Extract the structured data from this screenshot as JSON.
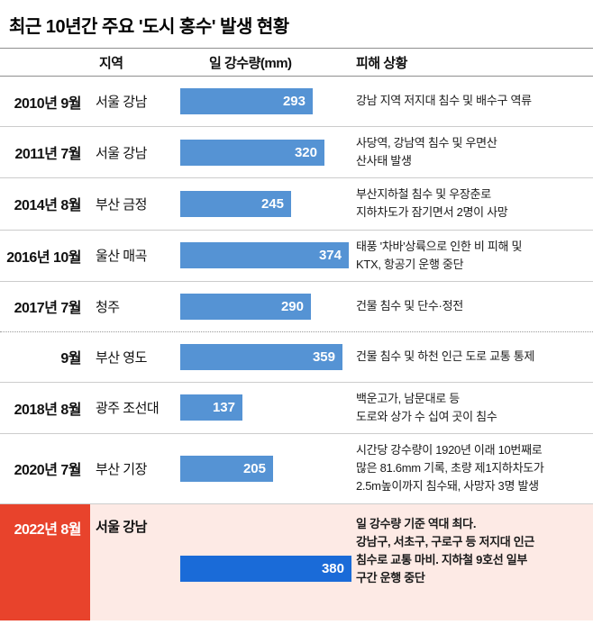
{
  "title": "최근 10년간 주요 '도시 홍수' 발생 현황",
  "header": {
    "region": "지역",
    "rainfall": "일 강수량(mm)",
    "damage": "피해 상황"
  },
  "colors": {
    "bar": "#5593d4",
    "bar_highlight": "#1a6bd8",
    "highlight_date_bg": "#e8432c",
    "highlight_row_bg": "#fdeae5"
  },
  "chart_data": {
    "type": "bar",
    "orientation": "horizontal",
    "title": "최근 10년간 주요 '도시 홍수' 발생 현황",
    "value_label": "일 강수량(mm)",
    "unit": "mm",
    "value_range": [
      0,
      380
    ],
    "rows": [
      {
        "date": "2010년 9월",
        "region": "서울 강남",
        "value": 293,
        "damage": "강남 지역 저지대 침수 및 배수구 역류",
        "divider": "solid",
        "highlight": false
      },
      {
        "date": "2011년 7월",
        "region": "서울 강남",
        "value": 320,
        "damage": "사당역, 강남역 침수 및 우면산\n산사태 발생",
        "divider": "solid",
        "highlight": false
      },
      {
        "date": "2014년 8월",
        "region": "부산 금정",
        "value": 245,
        "damage": "부산지하철 침수 및 우장춘로\n지하차도가 잠기면서 2명이 사망",
        "divider": "solid",
        "highlight": false
      },
      {
        "date": "2016년 10월",
        "region": "울산 매곡",
        "value": 374,
        "damage": "태풍 '차바'상륙으로 인한 비 피해 및\nKTX, 항공기 운행 중단",
        "divider": "solid",
        "highlight": false
      },
      {
        "date": "2017년 7월",
        "region": "청주",
        "value": 290,
        "damage": "건물 침수 및 단수·정전",
        "divider": "solid",
        "highlight": false
      },
      {
        "date": "9월",
        "region": "부산 영도",
        "value": 359,
        "damage": "건물 침수 및 하천 인근 도로 교통 통제",
        "divider": "dotted",
        "highlight": false
      },
      {
        "date": "2018년 8월",
        "region": "광주 조선대",
        "value": 137,
        "damage": "백운고가, 남문대로 등\n도로와 상가 수 십여 곳이 침수",
        "divider": "solid",
        "highlight": false
      },
      {
        "date": "2020년 7월",
        "region": "부산 기장",
        "value": 205,
        "damage": "시간당 강수량이 1920년 이래 10번째로\n많은 81.6mm 기록, 초량 제1지하차도가\n2.5m높이까지 침수돼, 사망자 3명 발생",
        "divider": "solid",
        "highlight": false
      },
      {
        "date": "2022년 8월",
        "region": "서울 강남",
        "value": 380,
        "damage": "일 강수량 기준 역대 최다.\n강남구, 서초구, 구로구 등 저지대 인근\n침수로 교통 마비. 지하철 9호선 일부\n구간 운행 중단",
        "divider": "solid",
        "highlight": true
      }
    ]
  }
}
